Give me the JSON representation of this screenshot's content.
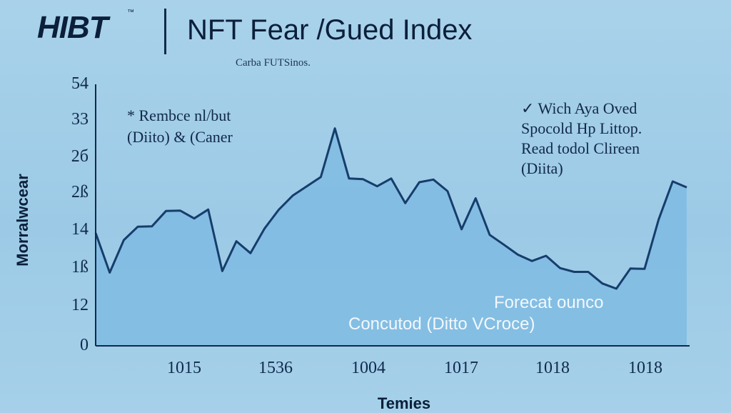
{
  "header": {
    "logo_text": "HIBT",
    "logo_mark": "™",
    "title": "NFT Fear /Gued Index",
    "subtitle": "Carba FUTSinos."
  },
  "annotations": {
    "left_line1": "* Rembce nl/but",
    "left_line2": "(Diito) & (Caner",
    "right_line1": "✓ Wich Aya Oved",
    "right_line2": "Spocold Hp Littop.",
    "right_line3": "Read todol Clireen",
    "right_line4": "(Diita)",
    "forecast_label": "Forecat ounco",
    "concluded_label": "Concutod (Ditto VCroce)"
  },
  "colors": {
    "line": "#163d6b",
    "area": "#7fbbe2",
    "axis": "#0f2a4c"
  },
  "chart_data": {
    "type": "area",
    "title": "NFT Fear /Gued Index",
    "subtitle": "Carba FUTSinos.",
    "xlabel": "Temies",
    "ylabel": "Morralwcear",
    "y_tick_labels": [
      "0",
      "12",
      "1ß",
      "14",
      "2ß",
      "2б",
      "33",
      "54"
    ],
    "x_tick_labels": [
      "1015",
      "1536",
      "1004",
      "1017",
      "1018",
      "1018"
    ],
    "ylim": [
      0,
      7
    ],
    "grid": false,
    "series": [
      {
        "values": [
          3.02,
          1.96,
          2.83,
          3.19,
          3.2,
          3.61,
          3.62,
          3.41,
          3.65,
          2.0,
          2.8,
          2.48,
          3.14,
          3.64,
          4.02,
          4.27,
          4.52,
          5.82,
          4.48,
          4.46,
          4.27,
          4.48,
          3.82,
          4.38,
          4.45,
          4.14,
          3.12,
          3.95,
          2.97,
          2.71,
          2.44,
          2.27,
          2.41,
          2.08,
          1.98,
          1.98,
          1.67,
          1.53,
          2.07,
          2.06,
          3.38,
          4.4,
          4.24
        ]
      }
    ]
  }
}
